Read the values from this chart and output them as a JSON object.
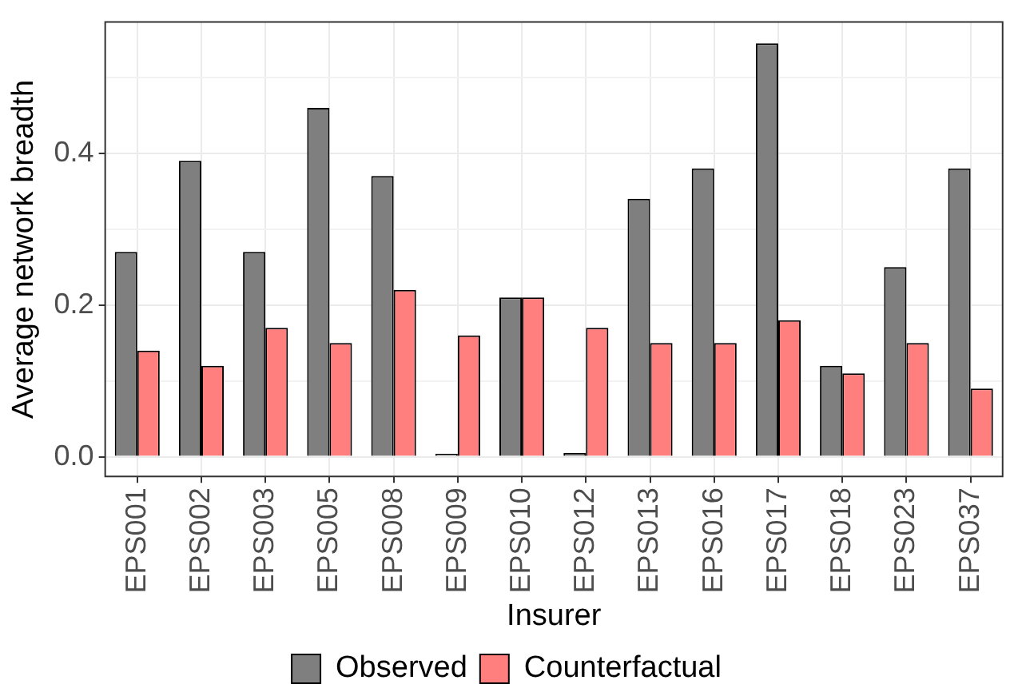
{
  "chart_data": {
    "type": "bar",
    "xlabel": "Insurer",
    "ylabel": "Average network breadth",
    "categories": [
      "EPS001",
      "EPS002",
      "EPS003",
      "EPS005",
      "EPS008",
      "EPS009",
      "EPS010",
      "EPS012",
      "EPS013",
      "EPS016",
      "EPS017",
      "EPS018",
      "EPS023",
      "EPS037"
    ],
    "series": [
      {
        "name": "Observed",
        "color": "#7f7f7f",
        "values": [
          0.27,
          0.39,
          0.27,
          0.46,
          0.37,
          0.004,
          0.21,
          0.005,
          0.34,
          0.38,
          0.545,
          0.12,
          0.25,
          0.38
        ]
      },
      {
        "name": "Counterfactual",
        "color": "#ff7f7f",
        "values": [
          0.14,
          0.12,
          0.17,
          0.15,
          0.22,
          0.16,
          0.21,
          0.17,
          0.15,
          0.15,
          0.18,
          0.11,
          0.15,
          0.09
        ]
      }
    ],
    "ylim": [
      -0.026,
      0.573
    ],
    "yticks": [
      {
        "value": 0,
        "label": "0.0"
      },
      {
        "value": 0.1,
        "label": null
      },
      {
        "value": 0.2,
        "label": "0.2"
      },
      {
        "value": 0.3,
        "label": null
      },
      {
        "value": 0.4,
        "label": "0.4"
      },
      {
        "value": 0.5,
        "label": null
      }
    ],
    "grid": true,
    "legend": "bottom"
  }
}
